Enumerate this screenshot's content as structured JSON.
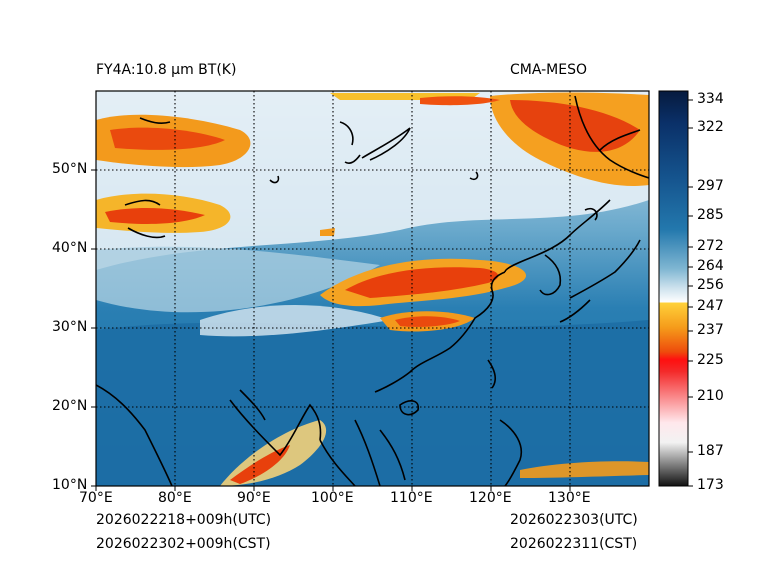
{
  "header": {
    "title_left": "FY4A:10.8 µm BT(K)",
    "title_right": "CMA-MESO"
  },
  "map": {
    "lon_labels": [
      "70°E",
      "80°E",
      "90°E",
      "100°E",
      "110°E",
      "120°E",
      "130°E"
    ],
    "lat_labels": [
      "10°N",
      "20°N",
      "30°N",
      "40°N",
      "50°N"
    ]
  },
  "colorbar": {
    "ticks": [
      "334",
      "322",
      "297",
      "285",
      "272",
      "264",
      "256",
      "247",
      "237",
      "225",
      "210",
      "187",
      "173"
    ]
  },
  "footer": {
    "init_utc": "2026022218+009h(UTC)",
    "init_cst": "2026022302+009h(CST)",
    "valid_utc": "2026022303(UTC)",
    "valid_cst": "2026022311(CST)"
  },
  "colors": {
    "ocean": "#1a6ea4",
    "cold_cloud": "#e8400c",
    "warm_cloud": "#f7c02c",
    "coast": "#000000"
  }
}
